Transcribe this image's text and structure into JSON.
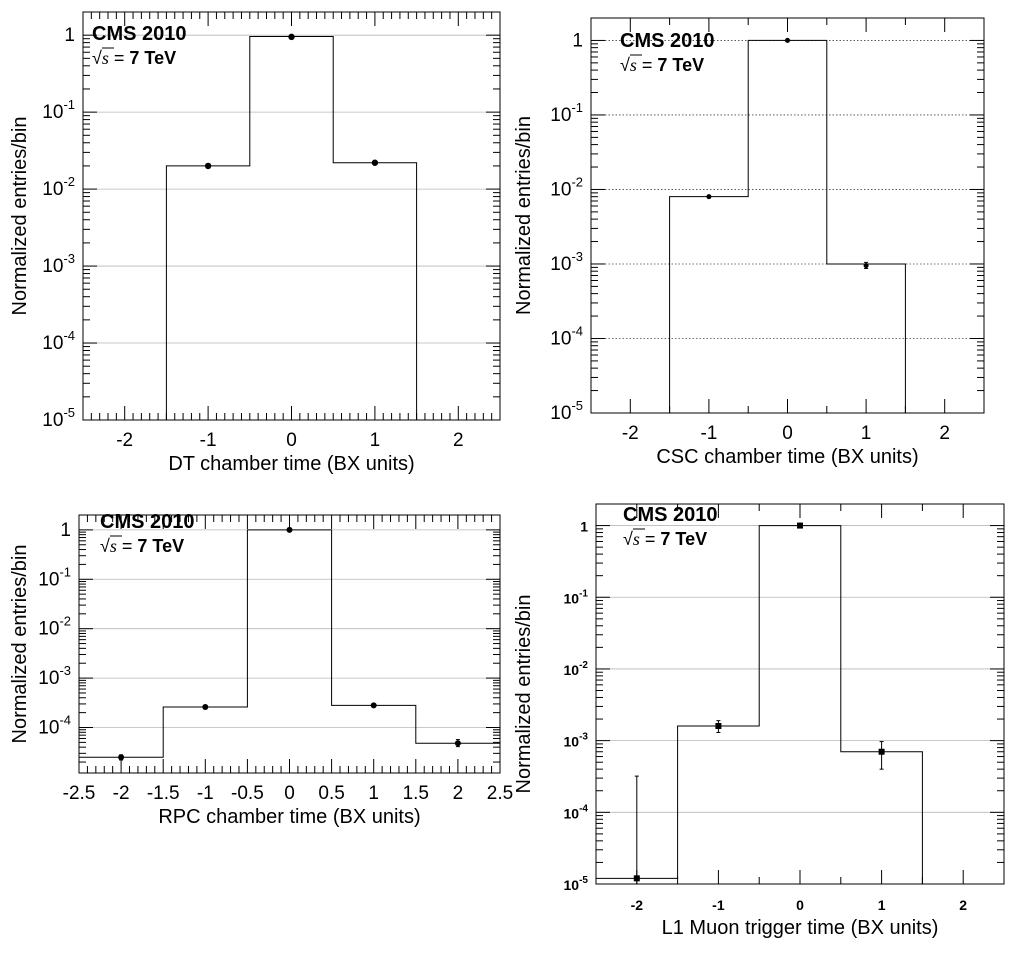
{
  "chart_data": [
    {
      "type": "histogram",
      "panel": "top-left",
      "experiment_label": "CMS 2010",
      "energy_label": {
        "sqrt": "√",
        "s": "s",
        "rest": " = ",
        "value": "7 TeV"
      },
      "xlabel": "DT chamber time (BX units)",
      "ylabel": "Normalized entries/bin",
      "xlim": [
        -2.5,
        2.5
      ],
      "ylim": [
        1e-05,
        2
      ],
      "yscale": "log",
      "grid": "horizontal solid",
      "x_ticks": [
        "-2",
        "-1",
        "0",
        "1",
        "2"
      ],
      "y_ticks": [
        {
          "value": 1,
          "mant": "1",
          "exp": ""
        },
        {
          "value": 0.1,
          "mant": "10",
          "exp": "-1"
        },
        {
          "value": 0.01,
          "mant": "10",
          "exp": "-2"
        },
        {
          "value": 0.001,
          "mant": "10",
          "exp": "-3"
        },
        {
          "value": 0.0001,
          "mant": "10",
          "exp": "-4"
        },
        {
          "value": 1e-05,
          "mant": "10",
          "exp": "-5"
        }
      ],
      "bins": [
        {
          "x": -1,
          "y": 0.02
        },
        {
          "x": 0,
          "y": 0.96
        },
        {
          "x": 1,
          "y": 0.022
        }
      ],
      "points": [
        {
          "x": -1,
          "y": 0.02
        },
        {
          "x": 0,
          "y": 0.95
        },
        {
          "x": 1,
          "y": 0.022
        }
      ]
    },
    {
      "type": "histogram",
      "panel": "top-right",
      "experiment_label": "CMS 2010",
      "energy_label": {
        "sqrt": "√",
        "s": "s",
        "rest": " = ",
        "value": "7 TeV"
      },
      "xlabel": "CSC chamber time (BX units)",
      "ylabel": "Normalized entries/bin",
      "xlim": [
        -2.5,
        2.5
      ],
      "ylim": [
        1e-05,
        2
      ],
      "yscale": "log",
      "grid": "horizontal dotted",
      "x_ticks": [
        "-2",
        "-1",
        "0",
        "1",
        "2"
      ],
      "y_ticks": [
        {
          "value": 1,
          "mant": "1",
          "exp": ""
        },
        {
          "value": 0.1,
          "mant": "10",
          "exp": "-1"
        },
        {
          "value": 0.01,
          "mant": "10",
          "exp": "-2"
        },
        {
          "value": 0.001,
          "mant": "10",
          "exp": "-3"
        },
        {
          "value": 0.0001,
          "mant": "10",
          "exp": "-4"
        },
        {
          "value": 1e-05,
          "mant": "10",
          "exp": "-5"
        }
      ],
      "bins": [
        {
          "x": -1,
          "y": 0.008
        },
        {
          "x": 0,
          "y": 1.0
        },
        {
          "x": 1,
          "y": 0.001
        }
      ],
      "points": [
        {
          "x": -1,
          "y": 0.008
        },
        {
          "x": 0,
          "y": 1.0
        },
        {
          "x": 1,
          "y": 0.00095,
          "err": [
            0.00087,
            0.00105
          ]
        }
      ]
    },
    {
      "type": "histogram",
      "panel": "bottom-left",
      "experiment_label": "CMS 2010",
      "energy_label": {
        "sqrt": "√",
        "s": "s",
        "rest": " = ",
        "value": "7 TeV"
      },
      "xlabel": "RPC chamber time (BX units)",
      "ylabel": "Normalized entries/bin",
      "xlim": [
        -2.5,
        2.5
      ],
      "ylim": [
        1.2e-05,
        2
      ],
      "yscale": "log",
      "grid": "horizontal solid",
      "x_ticks": [
        "-2.5",
        "-2",
        "-1.5",
        "-1",
        "-0.5",
        "0",
        "0.5",
        "1",
        "1.5",
        "2",
        "2.5"
      ],
      "y_ticks": [
        {
          "value": 1,
          "mant": "1",
          "exp": ""
        },
        {
          "value": 0.1,
          "mant": "10",
          "exp": "-1"
        },
        {
          "value": 0.01,
          "mant": "10",
          "exp": "-2"
        },
        {
          "value": 0.001,
          "mant": "10",
          "exp": "-3"
        },
        {
          "value": 0.0001,
          "mant": "10",
          "exp": "-4"
        }
      ],
      "bins": [
        {
          "x": -2,
          "y": 2.5e-05
        },
        {
          "x": -1,
          "y": 0.00026
        },
        {
          "x": 0,
          "y": 1.0
        },
        {
          "x": 1,
          "y": 0.00028
        },
        {
          "x": 2,
          "y": 4.8e-05
        }
      ],
      "points": [
        {
          "x": -2,
          "y": 2.5e-05,
          "err": [
            2.2e-05,
            2.8e-05
          ]
        },
        {
          "x": -1,
          "y": 0.00026
        },
        {
          "x": 0,
          "y": 1.0
        },
        {
          "x": 1,
          "y": 0.00028
        },
        {
          "x": 2,
          "y": 4.8e-05,
          "err": [
            4.1e-05,
            5.7e-05
          ]
        }
      ]
    },
    {
      "type": "histogram",
      "panel": "bottom-right",
      "experiment_label": "CMS 2010",
      "energy_label": {
        "sqrt": "√",
        "s": "s",
        "rest": " = ",
        "value": "7 TeV"
      },
      "xlabel": "L1 Muon trigger time (BX units)",
      "ylabel": "Normalized entries/bin",
      "xlim": [
        -2.5,
        2.5
      ],
      "ylim": [
        1e-05,
        2
      ],
      "yscale": "log",
      "grid": "horizontal solid",
      "x_ticks": [
        "-2",
        "-1",
        "0",
        "1",
        "2"
      ],
      "y_ticks": [
        {
          "value": 1,
          "mant": "1",
          "exp": ""
        },
        {
          "value": 0.1,
          "mant": "10",
          "exp": "-1"
        },
        {
          "value": 0.01,
          "mant": "10",
          "exp": "-2"
        },
        {
          "value": 0.001,
          "mant": "10",
          "exp": "-3"
        },
        {
          "value": 0.0001,
          "mant": "10",
          "exp": "-4"
        },
        {
          "value": 1e-05,
          "mant": "10",
          "exp": "-5"
        }
      ],
      "bins": [
        {
          "x": -2,
          "y": 1.2e-05
        },
        {
          "x": -1,
          "y": 0.0016
        },
        {
          "x": 0,
          "y": 1.0
        },
        {
          "x": 1,
          "y": 0.0007
        }
      ],
      "points": [
        {
          "x": -2,
          "y": 1.2e-05,
          "err": [
            1e-05,
            0.00032
          ]
        },
        {
          "x": -1,
          "y": 0.0016,
          "err": [
            0.0013,
            0.0019
          ]
        },
        {
          "x": 0,
          "y": 1.0
        },
        {
          "x": 1,
          "y": 0.0007,
          "err": [
            0.0004,
            0.00097
          ]
        }
      ]
    }
  ]
}
